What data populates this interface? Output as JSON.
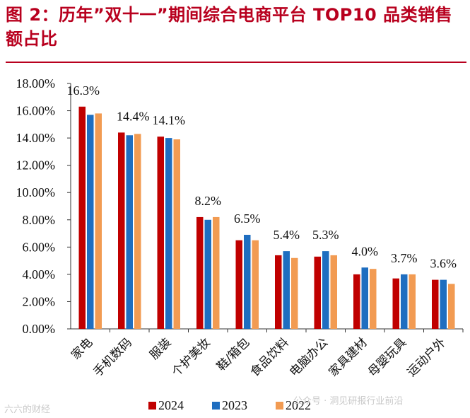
{
  "figure": {
    "title": "图 2：历年”双十一”期间综合电商平台 TOP10 品类销售额占比"
  },
  "watermark": {
    "left": "六六的财经",
    "right": "公众号 · 洞见研报行业前沿"
  },
  "colors": {
    "title": "#b8001e",
    "2024": "#c00000",
    "2023": "#1f6ec0",
    "2022": "#f29b52"
  },
  "chart_data": {
    "type": "bar",
    "title": "历年”双十一”期间综合电商平台 TOP10 品类销售额占比",
    "categories": [
      "家电",
      "手机数码",
      "服装",
      "个护美妆",
      "鞋/箱包",
      "食品饮料",
      "电脑办公",
      "家具建材",
      "母婴玩具",
      "运动户外"
    ],
    "series": [
      {
        "name": "2024",
        "values": [
          16.3,
          14.4,
          14.1,
          8.2,
          6.5,
          5.4,
          5.3,
          4.0,
          3.7,
          3.6
        ]
      },
      {
        "name": "2023",
        "values": [
          15.7,
          14.2,
          14.0,
          8.0,
          6.9,
          5.7,
          5.7,
          4.5,
          4.0,
          3.6
        ]
      },
      {
        "name": "2022",
        "values": [
          15.8,
          14.3,
          13.9,
          8.2,
          6.5,
          5.2,
          5.4,
          4.4,
          4.0,
          3.3
        ]
      }
    ],
    "data_labels": [
      "16.3%",
      "14.4%",
      "14.1%",
      "8.2%",
      "6.5%",
      "5.4%",
      "5.3%",
      "4.0%",
      "3.7%",
      "3.6%"
    ],
    "yticks": [
      "0.00%",
      "2.00%",
      "4.00%",
      "6.00%",
      "8.00%",
      "10.00%",
      "12.00%",
      "14.00%",
      "16.00%",
      "18.00%"
    ],
    "ylim": [
      0,
      18
    ],
    "xlabel": "",
    "ylabel": "",
    "legend": [
      "2024",
      "2023",
      "2022"
    ],
    "legend_position": "bottom"
  }
}
